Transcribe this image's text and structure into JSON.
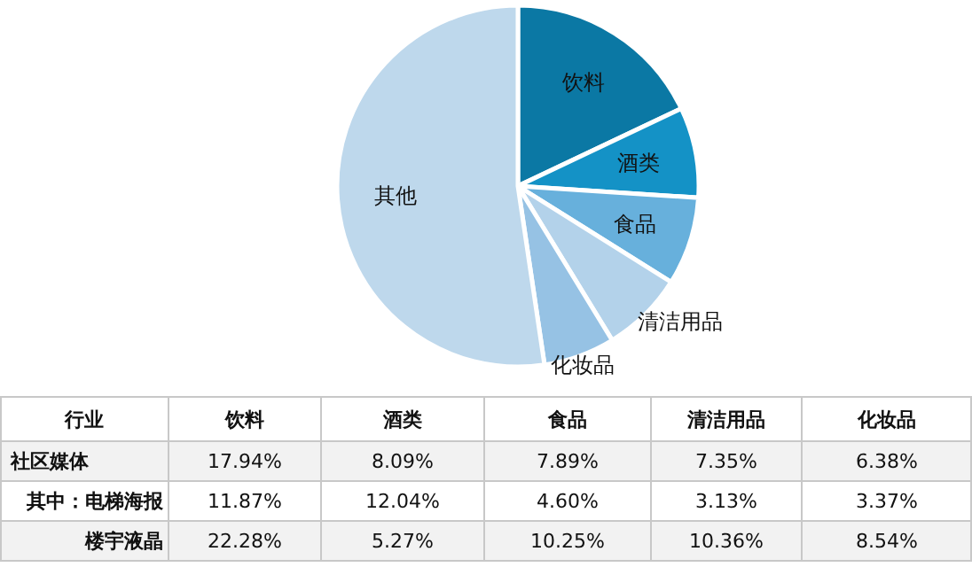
{
  "chart_data": [
    {
      "type": "pie",
      "categories": [
        "饮料",
        "酒类",
        "食品",
        "清洁用品",
        "化妆品",
        "其他"
      ],
      "values": [
        17.94,
        8.09,
        7.89,
        7.35,
        6.38,
        52.35
      ],
      "colors": [
        "#0b78a4",
        "#1492c6",
        "#67b0dc",
        "#b3d2ea",
        "#96c2e4",
        "#bed8ec"
      ],
      "legend": false
    },
    {
      "type": "other",
      "ylabel": "行业",
      "categories": [
        "饮料",
        "酒类",
        "食品",
        "清洁用品",
        "化妆品"
      ],
      "series": [
        {
          "name": "社区媒体",
          "values": [
            17.94,
            8.09,
            7.89,
            7.35,
            6.38
          ],
          "value_labels": [
            "17.94%",
            "8.09%",
            "7.89%",
            "7.35%",
            "6.38%"
          ]
        },
        {
          "name": "其中：电梯海报",
          "values": [
            11.87,
            12.04,
            4.6,
            3.13,
            3.37
          ],
          "value_labels": [
            "11.87%",
            "12.04%",
            "4.60%",
            "3.13%",
            "3.37%"
          ]
        },
        {
          "name": "楼宇液晶",
          "values": [
            22.28,
            5.27,
            10.25,
            10.36,
            8.54
          ],
          "value_labels": [
            "22.28%",
            "5.27%",
            "10.25%",
            "10.36%",
            "8.54%"
          ]
        }
      ]
    }
  ]
}
